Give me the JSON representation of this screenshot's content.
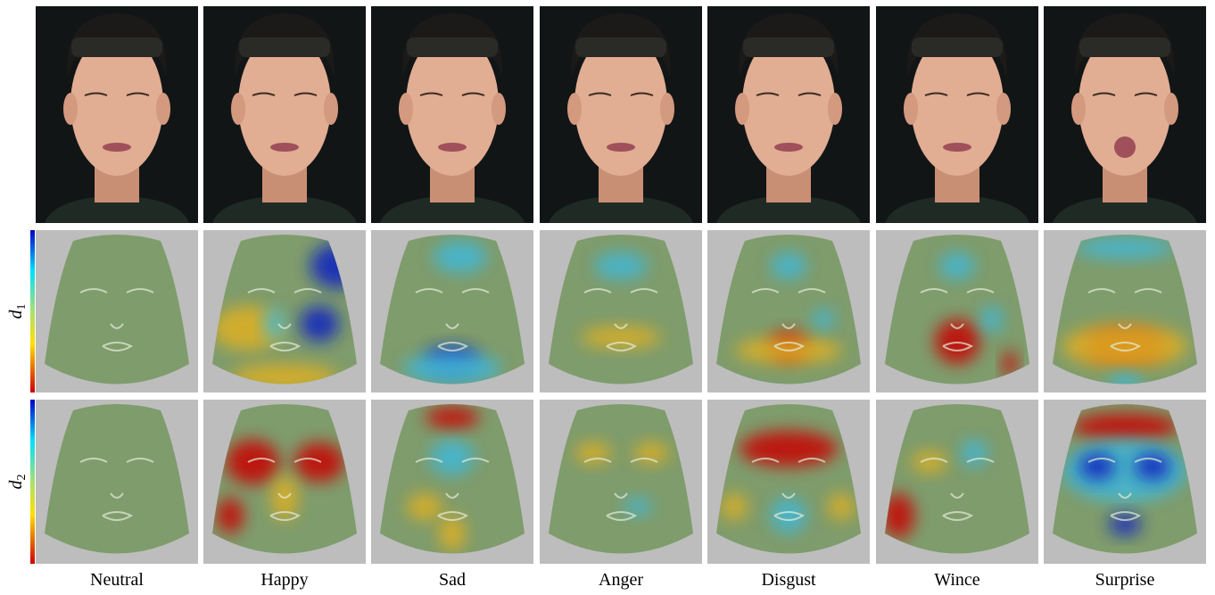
{
  "columns": [
    "Neutral",
    "Happy",
    "Sad",
    "Anger",
    "Disgust",
    "Wince",
    "Surprise"
  ],
  "row_labels": [
    {
      "base": "d",
      "sub": "1"
    },
    {
      "base": "d",
      "sub": "2"
    }
  ]
}
